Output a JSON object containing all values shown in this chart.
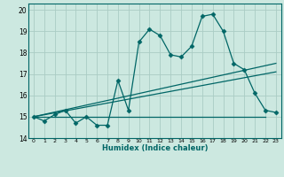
{
  "xlabel": "Humidex (Indice chaleur)",
  "bg_color": "#cce8e0",
  "line_color": "#006666",
  "grid_color": "#aaccc4",
  "xlim": [
    -0.5,
    23.5
  ],
  "ylim": [
    14,
    20.3
  ],
  "yticks": [
    14,
    15,
    16,
    17,
    18,
    19,
    20
  ],
  "xticks": [
    0,
    1,
    2,
    3,
    4,
    5,
    6,
    7,
    8,
    9,
    10,
    11,
    12,
    13,
    14,
    15,
    16,
    17,
    18,
    19,
    20,
    21,
    22,
    23
  ],
  "main_x": [
    0,
    1,
    2,
    3,
    4,
    5,
    6,
    7,
    8,
    9,
    10,
    11,
    12,
    13,
    14,
    15,
    16,
    17,
    18,
    19,
    20,
    21,
    22,
    23
  ],
  "main_y": [
    15.0,
    14.8,
    15.1,
    15.3,
    14.7,
    15.0,
    14.6,
    14.6,
    16.7,
    15.3,
    18.5,
    19.1,
    18.8,
    17.9,
    17.8,
    18.3,
    19.7,
    19.8,
    19.0,
    17.5,
    17.2,
    16.1,
    15.3,
    15.2
  ],
  "trend1_x": [
    0,
    23
  ],
  "trend1_y": [
    15.0,
    17.1
  ],
  "trend2_x": [
    0,
    23
  ],
  "trend2_y": [
    15.0,
    17.5
  ],
  "trend3_x": [
    0,
    22
  ],
  "trend3_y": [
    15.0,
    15.0
  ]
}
